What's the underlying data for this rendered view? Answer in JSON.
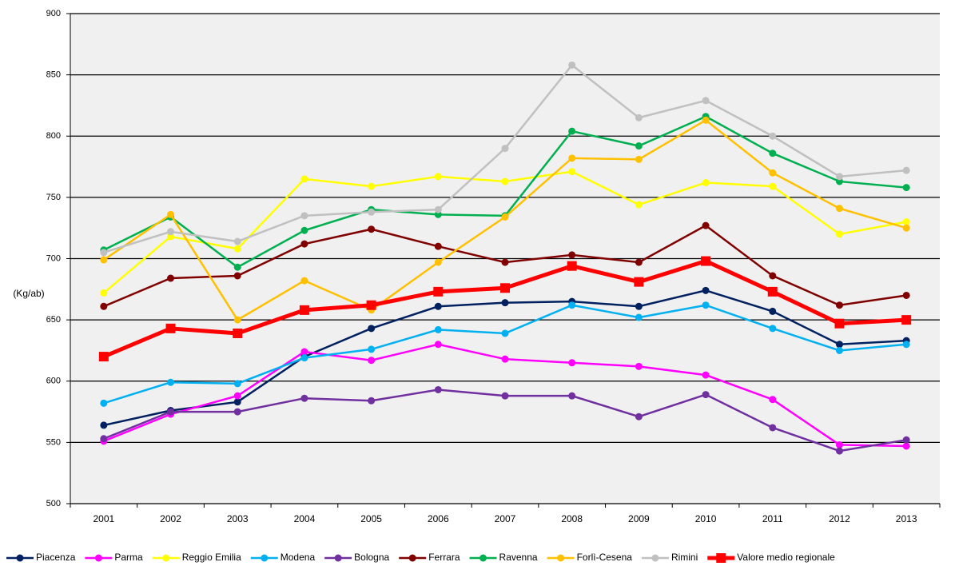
{
  "chart_data": {
    "type": "line",
    "y_label": "(Kg/ab)",
    "categories": [
      "2001",
      "2002",
      "2003",
      "2004",
      "2005",
      "2006",
      "2007",
      "2008",
      "2009",
      "2010",
      "2011",
      "2012",
      "2013"
    ],
    "ylim": [
      500,
      900
    ],
    "yticks": [
      500,
      550,
      600,
      650,
      700,
      750,
      800,
      850,
      900
    ],
    "grid": true,
    "legend": "bottom",
    "series": [
      {
        "name": "Piacenza",
        "color": "#002060",
        "marker": "circle",
        "values": [
          564,
          576,
          583,
          620,
          643,
          661,
          664,
          665,
          661,
          674,
          657,
          630,
          633
        ]
      },
      {
        "name": "Parma",
        "color": "#ff00ff",
        "marker": "circle",
        "values": [
          551,
          573,
          588,
          624,
          617,
          630,
          618,
          615,
          612,
          605,
          585,
          548,
          547
        ]
      },
      {
        "name": "Reggio Emilia",
        "color": "#ffff00",
        "marker": "circle",
        "values": [
          672,
          718,
          708,
          765,
          759,
          767,
          763,
          771,
          744,
          762,
          759,
          720,
          730
        ]
      },
      {
        "name": "Modena",
        "color": "#00b0f0",
        "marker": "circle",
        "values": [
          582,
          599,
          598,
          619,
          626,
          642,
          639,
          662,
          652,
          662,
          643,
          625,
          630
        ]
      },
      {
        "name": "Bologna",
        "color": "#7030a0",
        "marker": "circle",
        "values": [
          553,
          575,
          575,
          586,
          584,
          593,
          588,
          588,
          571,
          589,
          562,
          543,
          552
        ]
      },
      {
        "name": "Ferrara",
        "color": "#800000",
        "marker": "circle",
        "values": [
          661,
          684,
          686,
          712,
          724,
          710,
          697,
          703,
          697,
          727,
          686,
          662,
          670
        ]
      },
      {
        "name": "Ravenna",
        "color": "#00b050",
        "marker": "circle",
        "values": [
          707,
          734,
          693,
          723,
          740,
          736,
          735,
          804,
          792,
          816,
          786,
          763,
          758
        ]
      },
      {
        "name": "Forlì-Cesena",
        "color": "#ffc000",
        "marker": "circle",
        "values": [
          699,
          736,
          650,
          682,
          658,
          697,
          734,
          782,
          781,
          813,
          770,
          741,
          725
        ]
      },
      {
        "name": "Rimini",
        "color": "#c0c0c0",
        "marker": "circle",
        "values": [
          705,
          722,
          714,
          735,
          738,
          740,
          790,
          858,
          815,
          829,
          800,
          767,
          772
        ]
      },
      {
        "name": "Valore medio regionale",
        "color": "#ff0000",
        "marker": "square",
        "values": [
          620,
          643,
          639,
          658,
          662,
          673,
          676,
          694,
          681,
          698,
          673,
          647,
          650
        ]
      }
    ]
  }
}
